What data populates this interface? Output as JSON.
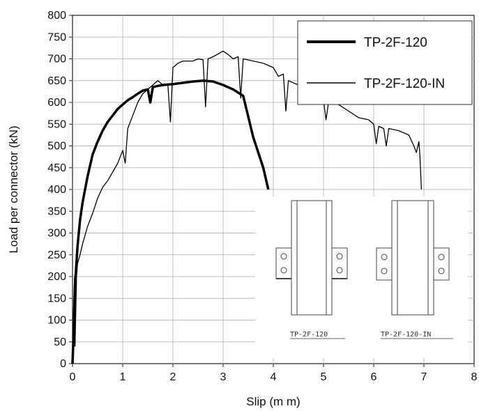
{
  "chart_data": {
    "type": "line",
    "xlabel": "Slip (m m)",
    "ylabel": "Load per connector (kN)",
    "xlim": [
      0,
      8
    ],
    "ylim": [
      0,
      800
    ],
    "x_ticks": [
      0,
      1,
      2,
      3,
      4,
      5,
      6,
      7,
      8
    ],
    "y_ticks": [
      0,
      50,
      100,
      150,
      200,
      250,
      300,
      350,
      400,
      450,
      500,
      550,
      600,
      650,
      700,
      750,
      800
    ],
    "grid": true,
    "legend_position": "top-right",
    "series": [
      {
        "name": "TP-2F-120",
        "line_style": "thick",
        "points": [
          [
            0,
            0
          ],
          [
            0.02,
            60
          ],
          [
            0.05,
            180
          ],
          [
            0.1,
            270
          ],
          [
            0.15,
            330
          ],
          [
            0.2,
            370
          ],
          [
            0.3,
            430
          ],
          [
            0.4,
            480
          ],
          [
            0.5,
            510
          ],
          [
            0.6,
            535
          ],
          [
            0.7,
            555
          ],
          [
            0.8,
            570
          ],
          [
            0.9,
            585
          ],
          [
            1.0,
            595
          ],
          [
            1.1,
            605
          ],
          [
            1.2,
            612
          ],
          [
            1.3,
            620
          ],
          [
            1.4,
            627
          ],
          [
            1.5,
            630
          ],
          [
            1.55,
            600
          ],
          [
            1.6,
            635
          ],
          [
            1.7,
            638
          ],
          [
            1.8,
            640
          ],
          [
            2.0,
            642
          ],
          [
            2.2,
            645
          ],
          [
            2.4,
            648
          ],
          [
            2.6,
            650
          ],
          [
            2.8,
            648
          ],
          [
            3.0,
            640
          ],
          [
            3.2,
            630
          ],
          [
            3.4,
            615
          ],
          [
            3.6,
            520
          ],
          [
            3.8,
            450
          ],
          [
            3.9,
            400
          ]
        ]
      },
      {
        "name": "TP-2F-120-IN",
        "line_style": "thin",
        "points": [
          [
            0,
            0
          ],
          [
            0.02,
            120
          ],
          [
            0.04,
            200
          ],
          [
            0.05,
            40
          ],
          [
            0.08,
            200
          ],
          [
            0.1,
            230
          ],
          [
            0.15,
            250
          ],
          [
            0.2,
            275
          ],
          [
            0.3,
            315
          ],
          [
            0.4,
            345
          ],
          [
            0.5,
            380
          ],
          [
            0.6,
            405
          ],
          [
            0.7,
            420
          ],
          [
            0.8,
            440
          ],
          [
            0.9,
            460
          ],
          [
            1.0,
            490
          ],
          [
            1.05,
            460
          ],
          [
            1.1,
            540
          ],
          [
            1.2,
            570
          ],
          [
            1.3,
            600
          ],
          [
            1.4,
            620
          ],
          [
            1.5,
            630
          ],
          [
            1.6,
            640
          ],
          [
            1.7,
            650
          ],
          [
            1.8,
            640
          ],
          [
            1.9,
            640
          ],
          [
            1.95,
            555
          ],
          [
            2.0,
            680
          ],
          [
            2.1,
            690
          ],
          [
            2.2,
            695
          ],
          [
            2.4,
            695
          ],
          [
            2.5,
            700
          ],
          [
            2.6,
            698
          ],
          [
            2.65,
            590
          ],
          [
            2.7,
            700
          ],
          [
            2.8,
            705
          ],
          [
            3.0,
            718
          ],
          [
            3.1,
            710
          ],
          [
            3.2,
            700
          ],
          [
            3.3,
            705
          ],
          [
            3.35,
            610
          ],
          [
            3.4,
            700
          ],
          [
            3.6,
            695
          ],
          [
            3.8,
            690
          ],
          [
            4.0,
            680
          ],
          [
            4.1,
            660
          ],
          [
            4.2,
            665
          ],
          [
            4.25,
            580
          ],
          [
            4.3,
            650
          ],
          [
            4.5,
            640
          ],
          [
            4.8,
            610
          ],
          [
            5.0,
            605
          ],
          [
            5.05,
            560
          ],
          [
            5.1,
            600
          ],
          [
            5.3,
            595
          ],
          [
            5.5,
            580
          ],
          [
            5.7,
            565
          ],
          [
            5.9,
            560
          ],
          [
            6.0,
            550
          ],
          [
            6.05,
            505
          ],
          [
            6.1,
            545
          ],
          [
            6.2,
            540
          ],
          [
            6.25,
            500
          ],
          [
            6.3,
            540
          ],
          [
            6.5,
            535
          ],
          [
            6.7,
            525
          ],
          [
            6.8,
            500
          ],
          [
            6.85,
            485
          ],
          [
            6.9,
            510
          ],
          [
            6.92,
            480
          ],
          [
            6.95,
            400
          ]
        ]
      }
    ],
    "inset": {
      "labels": [
        "TP-2F-120",
        "TP-2F-120-IN"
      ]
    }
  }
}
